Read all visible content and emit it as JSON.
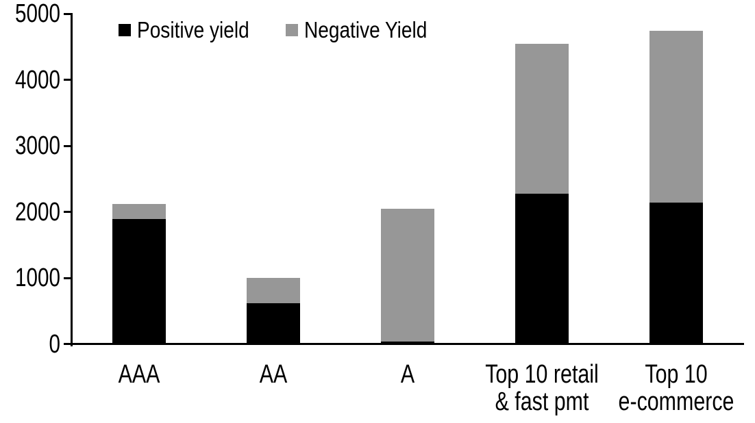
{
  "chart_data": {
    "type": "bar",
    "stacked": true,
    "title": "",
    "xlabel": "",
    "ylabel": "",
    "categories": [
      "AAA",
      "AA",
      "A",
      "Top 10 retail & fast pmt",
      "Top 10 e-commerce"
    ],
    "category_label_lines": [
      [
        "AAA"
      ],
      [
        "AA"
      ],
      [
        "A"
      ],
      [
        "Top 10 retail",
        "& fast pmt"
      ],
      [
        "Top 10",
        "e-commerce"
      ]
    ],
    "series": [
      {
        "name": "Positive yield",
        "color": "#000000",
        "values": [
          1890,
          620,
          40,
          2280,
          2140
        ]
      },
      {
        "name": "Negative Yield",
        "color": "#979797",
        "values": [
          230,
          380,
          2010,
          2270,
          2600
        ]
      }
    ],
    "stack_totals": [
      2120,
      1000,
      2050,
      4550,
      4740
    ],
    "ylim": [
      0,
      5000
    ],
    "yticks": [
      0,
      1000,
      2000,
      3000,
      4000,
      5000
    ],
    "grid": false,
    "legend_position": "top"
  },
  "colors": {
    "background": "#ffffff",
    "axis": "#000000",
    "positive_series": "#000000",
    "negative_series": "#979797"
  }
}
